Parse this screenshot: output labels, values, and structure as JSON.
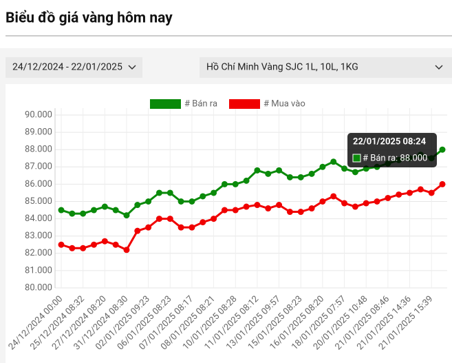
{
  "header": {
    "title": "Biểu đồ giá vàng hôm nay"
  },
  "filters": {
    "date_range": "24/12/2024 - 22/01/2025",
    "product": "Hồ Chí Minh Vàng SJC 1L, 10L, 1KG"
  },
  "chart_data": {
    "type": "line",
    "categories": [
      "24/12/2024 00:00",
      null,
      "25/12/2024 08:32",
      null,
      "27/12/2024 08:20",
      null,
      "31/12/2024 08:30",
      null,
      "02/01/2025 09:23",
      null,
      "06/01/2025 08:23",
      null,
      "07/01/2025 08:17",
      null,
      "08/01/2025 08:21",
      null,
      "10/01/2025 08:28",
      null,
      "11/01/2025 08:12",
      null,
      "13/01/2025 09:57",
      null,
      "15/01/2025 08:23",
      null,
      "16/01/2025 08:20",
      null,
      "18/01/2025 07:57",
      null,
      "20/01/2025 10:48",
      null,
      "21/01/2025 08:46",
      null,
      "21/01/2025 14:36",
      null,
      "21/01/2025 15:39",
      null
    ],
    "series": [
      {
        "name": "# Bán ra",
        "color": "#0a8a0a",
        "values": [
          84500,
          84300,
          84300,
          84500,
          84700,
          84500,
          84200,
          84800,
          85000,
          85500,
          85500,
          85000,
          85000,
          85300,
          85500,
          86000,
          86000,
          86200,
          86800,
          86600,
          86800,
          86400,
          86400,
          86600,
          87000,
          87300,
          86900,
          86700,
          86900,
          87000,
          87200,
          87400,
          87500,
          87700,
          87500,
          88000
        ]
      },
      {
        "name": "# Mua vào",
        "color": "#f00000",
        "values": [
          82500,
          82300,
          82300,
          82500,
          82700,
          82500,
          82200,
          83300,
          83500,
          84000,
          84000,
          83500,
          83500,
          83800,
          84000,
          84500,
          84500,
          84700,
          84800,
          84600,
          84800,
          84400,
          84400,
          84600,
          85000,
          85300,
          84900,
          84700,
          84900,
          85000,
          85200,
          85400,
          85500,
          85700,
          85500,
          86000
        ]
      }
    ],
    "ylim": [
      80000,
      90000
    ],
    "yticks": [
      {
        "value": 80000,
        "label": "80.000"
      },
      {
        "value": 81000,
        "label": "81.000"
      },
      {
        "value": 82000,
        "label": "82.000"
      },
      {
        "value": 83000,
        "label": "83.000"
      },
      {
        "value": 84000,
        "label": "84.000"
      },
      {
        "value": 85000,
        "label": "85.000"
      },
      {
        "value": 86000,
        "label": "86.000"
      },
      {
        "value": 87000,
        "label": "87.000"
      },
      {
        "value": 88000,
        "label": "88.000"
      },
      {
        "value": 89000,
        "label": "89.000"
      },
      {
        "value": 90000,
        "label": "90.000"
      }
    ],
    "grid": true,
    "tooltip": {
      "title": "22/01/2025 08:24",
      "label": "# Bán ra: 88.000"
    }
  }
}
